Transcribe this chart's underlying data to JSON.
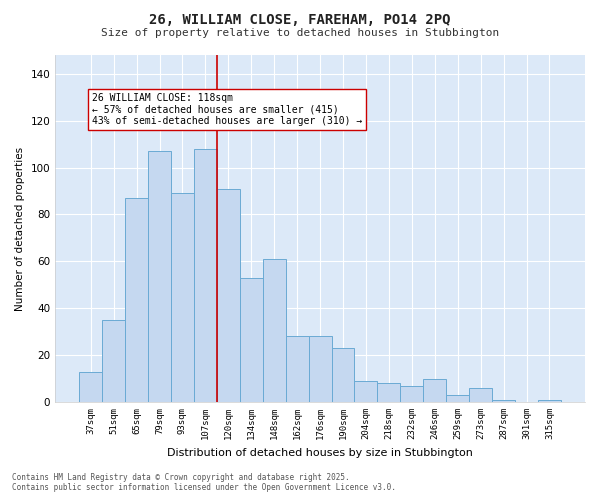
{
  "title_line1": "26, WILLIAM CLOSE, FAREHAM, PO14 2PQ",
  "title_line2": "Size of property relative to detached houses in Stubbington",
  "xlabel": "Distribution of detached houses by size in Stubbington",
  "ylabel": "Number of detached properties",
  "categories": [
    "37sqm",
    "51sqm",
    "65sqm",
    "79sqm",
    "93sqm",
    "107sqm",
    "120sqm",
    "134sqm",
    "148sqm",
    "162sqm",
    "176sqm",
    "190sqm",
    "204sqm",
    "218sqm",
    "232sqm",
    "246sqm",
    "259sqm",
    "273sqm",
    "287sqm",
    "301sqm",
    "315sqm"
  ],
  "values": [
    13,
    35,
    87,
    107,
    89,
    108,
    91,
    53,
    61,
    28,
    28,
    23,
    9,
    8,
    7,
    10,
    3,
    6,
    1,
    0,
    1
  ],
  "bar_color": "#c5d8f0",
  "bar_edge_color": "#6aaad4",
  "vline_color": "#cc0000",
  "annotation_text": "26 WILLIAM CLOSE: 118sqm\n← 57% of detached houses are smaller (415)\n43% of semi-detached houses are larger (310) →",
  "annotation_box_color": "#ffffff",
  "annotation_box_edge": "#cc0000",
  "ylim": [
    0,
    148
  ],
  "yticks": [
    0,
    20,
    40,
    60,
    80,
    100,
    120,
    140
  ],
  "background_color": "#dce9f8",
  "fig_background": "#ffffff",
  "grid_color": "#ffffff",
  "footer_line1": "Contains HM Land Registry data © Crown copyright and database right 2025.",
  "footer_line2": "Contains public sector information licensed under the Open Government Licence v3.0."
}
